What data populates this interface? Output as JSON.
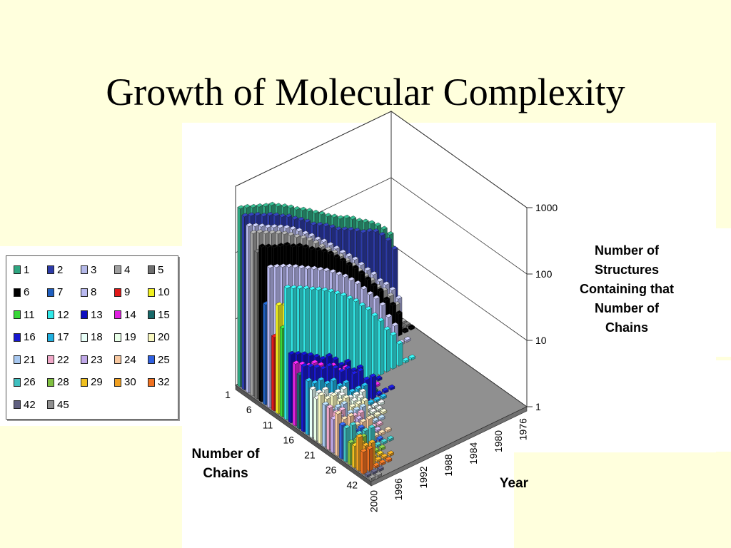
{
  "title": "Growth of Molecular Complexity",
  "chart_data": {
    "type": "bar",
    "subtype": "3d-column",
    "zlabel": "Number of Structures Containing that Number of Chains",
    "xlabel": "Number of Chains",
    "ylabel": "Year",
    "zscale": "log",
    "zlim": [
      1,
      1000
    ],
    "z_ticks": [
      "1",
      "10",
      "100",
      "1000"
    ],
    "x_ticks": [
      "1",
      "6",
      "11",
      "16",
      "21",
      "26",
      "42"
    ],
    "y_ticks": [
      "2000",
      "1996",
      "1992",
      "1988",
      "1984",
      "1980",
      "1976"
    ],
    "x_categories": [
      "1",
      "2",
      "3",
      "4",
      "5",
      "6",
      "7",
      "8",
      "9",
      "10",
      "11",
      "12",
      "13",
      "14",
      "15",
      "16",
      "17",
      "18",
      "19",
      "20",
      "21",
      "22",
      "23",
      "24",
      "25",
      "26",
      "28",
      "29",
      "30",
      "32",
      "42",
      "45"
    ],
    "years": [
      2000,
      1999,
      1998,
      1997,
      1996,
      1995,
      1994,
      1993,
      1992,
      1991,
      1990,
      1989,
      1988,
      1987,
      1986,
      1985,
      1984,
      1983,
      1982,
      1981,
      1980,
      1979,
      1978,
      1977,
      1976
    ],
    "series": [
      {
        "name": "1",
        "values": [
          450,
          420,
          380,
          350,
          320,
          300,
          260,
          230,
          200,
          170,
          150,
          130,
          110,
          95,
          80,
          70,
          60,
          55,
          48,
          40,
          35,
          30,
          25,
          20,
          15
        ]
      },
      {
        "name": "2",
        "values": [
          380,
          350,
          320,
          280,
          260,
          230,
          200,
          180,
          150,
          130,
          110,
          90,
          80,
          70,
          60,
          50,
          45,
          40,
          35,
          30,
          28,
          25,
          20,
          15,
          10
        ]
      },
      {
        "name": "3",
        "values": [
          300,
          270,
          240,
          210,
          190,
          170,
          150,
          130,
          110,
          90,
          75,
          60,
          50,
          40,
          32,
          25,
          20,
          16,
          12,
          9,
          7,
          5,
          4,
          3,
          2
        ]
      },
      {
        "name": "4",
        "values": [
          260,
          240,
          210,
          190,
          170,
          150,
          130,
          110,
          95,
          80,
          65,
          52,
          42,
          34,
          27,
          21,
          16,
          12,
          9,
          7,
          5,
          4,
          3,
          2,
          1
        ]
      },
      {
        "name": "5",
        "values": [
          150,
          140,
          120,
          110,
          95,
          85,
          75,
          65,
          55,
          45,
          38,
          30,
          24,
          19,
          15,
          12,
          9,
          7,
          5,
          4,
          3,
          2,
          1,
          1,
          1
        ]
      },
      {
        "name": "6",
        "values": [
          200,
          180,
          160,
          150,
          140,
          120,
          110,
          95,
          80,
          70,
          60,
          50,
          40,
          32,
          25,
          20,
          15,
          11,
          8,
          6,
          4,
          3,
          2,
          1,
          1
        ]
      },
      {
        "name": "7",
        "values": [
          30,
          28,
          25,
          22,
          20,
          18,
          16,
          14,
          12,
          10,
          8,
          7,
          6,
          5,
          4,
          3,
          2,
          2,
          1,
          1,
          0,
          0,
          0,
          0,
          0
        ]
      },
      {
        "name": "8",
        "values": [
          120,
          110,
          100,
          90,
          80,
          70,
          62,
          55,
          48,
          42,
          36,
          30,
          25,
          20,
          16,
          12,
          9,
          7,
          5,
          3,
          2,
          1,
          1,
          0,
          0
        ]
      },
      {
        "name": "9",
        "values": [
          12,
          11,
          10,
          9,
          8,
          7,
          6,
          5,
          4,
          4,
          3,
          3,
          2,
          2,
          1,
          1,
          1,
          0,
          0,
          0,
          0,
          0,
          0,
          0,
          0
        ]
      },
      {
        "name": "10",
        "values": [
          40,
          36,
          32,
          28,
          25,
          22,
          19,
          16,
          14,
          12,
          10,
          8,
          6,
          5,
          4,
          3,
          2,
          1,
          1,
          0,
          0,
          0,
          0,
          0,
          0
        ]
      },
      {
        "name": "11",
        "values": [
          20,
          18,
          16,
          14,
          12,
          11,
          10,
          8,
          7,
          6,
          5,
          4,
          3,
          2,
          2,
          1,
          1,
          0,
          0,
          0,
          0,
          0,
          0,
          0,
          0
        ]
      },
      {
        "name": "12",
        "values": [
          90,
          80,
          72,
          64,
          56,
          50,
          44,
          38,
          32,
          27,
          22,
          18,
          14,
          11,
          8,
          6,
          4,
          3,
          2,
          1,
          1,
          0,
          0,
          0,
          0
        ]
      },
      {
        "name": "13",
        "values": [
          10,
          9,
          8,
          7,
          6,
          5,
          5,
          4,
          3,
          3,
          2,
          2,
          1,
          1,
          1,
          0,
          0,
          0,
          0,
          0,
          0,
          0,
          0,
          0,
          0
        ]
      },
      {
        "name": "14",
        "values": [
          8,
          7,
          6,
          6,
          5,
          4,
          4,
          3,
          3,
          2,
          2,
          1,
          1,
          1,
          0,
          0,
          0,
          0,
          0,
          0,
          0,
          0,
          0,
          0,
          0
        ]
      },
      {
        "name": "15",
        "values": [
          6,
          5,
          5,
          4,
          4,
          3,
          3,
          2,
          2,
          2,
          1,
          1,
          1,
          0,
          0,
          0,
          0,
          0,
          0,
          0,
          0,
          0,
          0,
          0,
          0
        ]
      },
      {
        "name": "16",
        "values": [
          9,
          8,
          7,
          6,
          6,
          5,
          4,
          4,
          3,
          3,
          2,
          2,
          1,
          1,
          1,
          0,
          0,
          0,
          0,
          0,
          0,
          0,
          0,
          0,
          0
        ]
      },
      {
        "name": "17",
        "values": [
          6,
          5,
          5,
          4,
          4,
          3,
          3,
          2,
          2,
          2,
          1,
          1,
          1,
          0,
          0,
          0,
          0,
          0,
          0,
          0,
          0,
          0,
          0,
          0,
          0
        ]
      },
      {
        "name": "18",
        "values": [
          5,
          4,
          4,
          3,
          3,
          3,
          2,
          2,
          2,
          1,
          1,
          1,
          0,
          0,
          0,
          0,
          0,
          0,
          0,
          0,
          0,
          0,
          0,
          0,
          0
        ]
      },
      {
        "name": "19",
        "values": [
          4,
          4,
          3,
          3,
          3,
          2,
          2,
          2,
          1,
          1,
          1,
          0,
          0,
          0,
          0,
          0,
          0,
          0,
          0,
          0,
          0,
          0,
          0,
          0,
          0
        ]
      },
      {
        "name": "20",
        "values": [
          5,
          4,
          4,
          3,
          3,
          2,
          2,
          2,
          1,
          1,
          1,
          0,
          0,
          0,
          0,
          0,
          0,
          0,
          0,
          0,
          0,
          0,
          0,
          0,
          0
        ]
      },
      {
        "name": "21",
        "values": [
          4,
          3,
          3,
          3,
          2,
          2,
          2,
          1,
          1,
          1,
          0,
          0,
          0,
          0,
          0,
          0,
          0,
          0,
          0,
          0,
          0,
          0,
          0,
          0,
          0
        ]
      },
      {
        "name": "22",
        "values": [
          4,
          3,
          3,
          2,
          2,
          2,
          1,
          1,
          1,
          0,
          0,
          0,
          0,
          0,
          0,
          0,
          0,
          0,
          0,
          0,
          0,
          0,
          0,
          0,
          0
        ]
      },
      {
        "name": "23",
        "values": [
          3,
          3,
          2,
          2,
          2,
          1,
          1,
          1,
          0,
          0,
          0,
          0,
          0,
          0,
          0,
          0,
          0,
          0,
          0,
          0,
          0,
          0,
          0,
          0,
          0
        ]
      },
      {
        "name": "24",
        "values": [
          4,
          3,
          3,
          2,
          2,
          2,
          1,
          1,
          1,
          0,
          0,
          0,
          0,
          0,
          0,
          0,
          0,
          0,
          0,
          0,
          0,
          0,
          0,
          0,
          0
        ]
      },
      {
        "name": "25",
        "values": [
          3,
          2,
          2,
          2,
          1,
          1,
          1,
          0,
          0,
          0,
          0,
          0,
          0,
          0,
          0,
          0,
          0,
          0,
          0,
          0,
          0,
          0,
          0,
          0,
          0
        ]
      },
      {
        "name": "26",
        "values": [
          3,
          3,
          2,
          2,
          2,
          1,
          1,
          1,
          0,
          0,
          0,
          0,
          0,
          0,
          0,
          0,
          0,
          0,
          0,
          0,
          0,
          0,
          0,
          0,
          0
        ]
      },
      {
        "name": "28",
        "values": [
          2,
          2,
          2,
          1,
          1,
          1,
          0,
          0,
          0,
          0,
          0,
          0,
          0,
          0,
          0,
          0,
          0,
          0,
          0,
          0,
          0,
          0,
          0,
          0,
          0
        ]
      },
      {
        "name": "29",
        "values": [
          2,
          2,
          1,
          1,
          1,
          0,
          0,
          0,
          0,
          0,
          0,
          0,
          0,
          0,
          0,
          0,
          0,
          0,
          0,
          0,
          0,
          0,
          0,
          0,
          0
        ]
      },
      {
        "name": "30",
        "values": [
          3,
          2,
          2,
          1,
          1,
          1,
          0,
          0,
          0,
          0,
          0,
          0,
          0,
          0,
          0,
          0,
          0,
          0,
          0,
          0,
          0,
          0,
          0,
          0,
          0
        ]
      },
      {
        "name": "32",
        "values": [
          2,
          2,
          1,
          1,
          1,
          0,
          0,
          0,
          0,
          0,
          0,
          0,
          0,
          0,
          0,
          0,
          0,
          0,
          0,
          0,
          0,
          0,
          0,
          0,
          0
        ]
      },
      {
        "name": "42",
        "values": [
          1,
          1,
          1,
          0,
          0,
          0,
          0,
          0,
          0,
          0,
          0,
          0,
          0,
          0,
          0,
          0,
          0,
          0,
          0,
          0,
          0,
          0,
          0,
          0,
          0
        ]
      },
      {
        "name": "45",
        "values": [
          1,
          1,
          0,
          0,
          0,
          0,
          0,
          0,
          0,
          0,
          0,
          0,
          0,
          0,
          0,
          0,
          0,
          0,
          0,
          0,
          0,
          0,
          0,
          0,
          0
        ]
      }
    ],
    "colors": {
      "1": "#2ea580",
      "2": "#2c3aa8",
      "3": "#b4b8e8",
      "4": "#a0a0a0",
      "5": "#707070",
      "6": "#000000",
      "7": "#1f5fc0",
      "8": "#b9b9f0",
      "9": "#e01818",
      "10": "#f0f020",
      "11": "#38d838",
      "12": "#30e8e8",
      "13": "#1010c0",
      "14": "#e020e0",
      "15": "#186868",
      "16": "#1818d0",
      "17": "#20b0e0",
      "18": "#e8fff8",
      "19": "#e8ffe8",
      "20": "#f8f8c0",
      "21": "#a8c8f0",
      "22": "#f0a8c8",
      "23": "#c0a8e8",
      "24": "#f8c8a0",
      "25": "#3060e0",
      "26": "#40c0c0",
      "28": "#80c040",
      "29": "#f0c020",
      "30": "#f0a020",
      "32": "#f07020",
      "42": "#606080",
      "45": "#909090"
    },
    "legend_position": "left",
    "floor_color": "#909090",
    "grid": true
  }
}
